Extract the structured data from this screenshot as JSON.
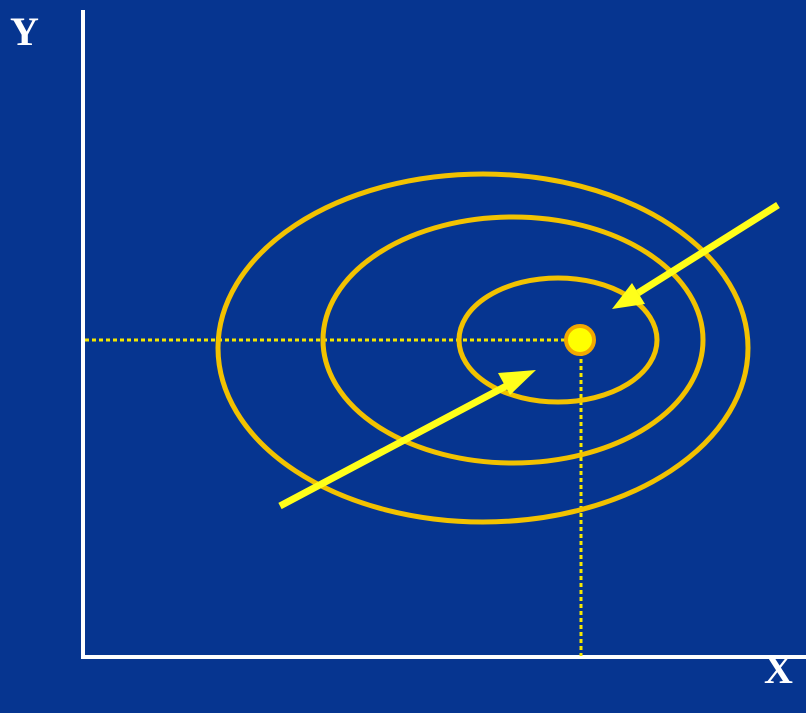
{
  "axes": {
    "x_label": "X",
    "y_label": "Y"
  },
  "colors": {
    "background": "#063590",
    "axis": "#ffffff",
    "contour": "#f2c200",
    "arrow": "#ffff1a",
    "guide": "#f5e800",
    "optimum_fill": "#ffff00",
    "optimum_stroke": "#f2a800"
  },
  "contours": [
    {
      "name": "outer"
    },
    {
      "name": "middle"
    },
    {
      "name": "inner"
    }
  ],
  "arrows": [
    {
      "name": "arrow-from-lower-left"
    },
    {
      "name": "arrow-from-upper-right"
    }
  ]
}
